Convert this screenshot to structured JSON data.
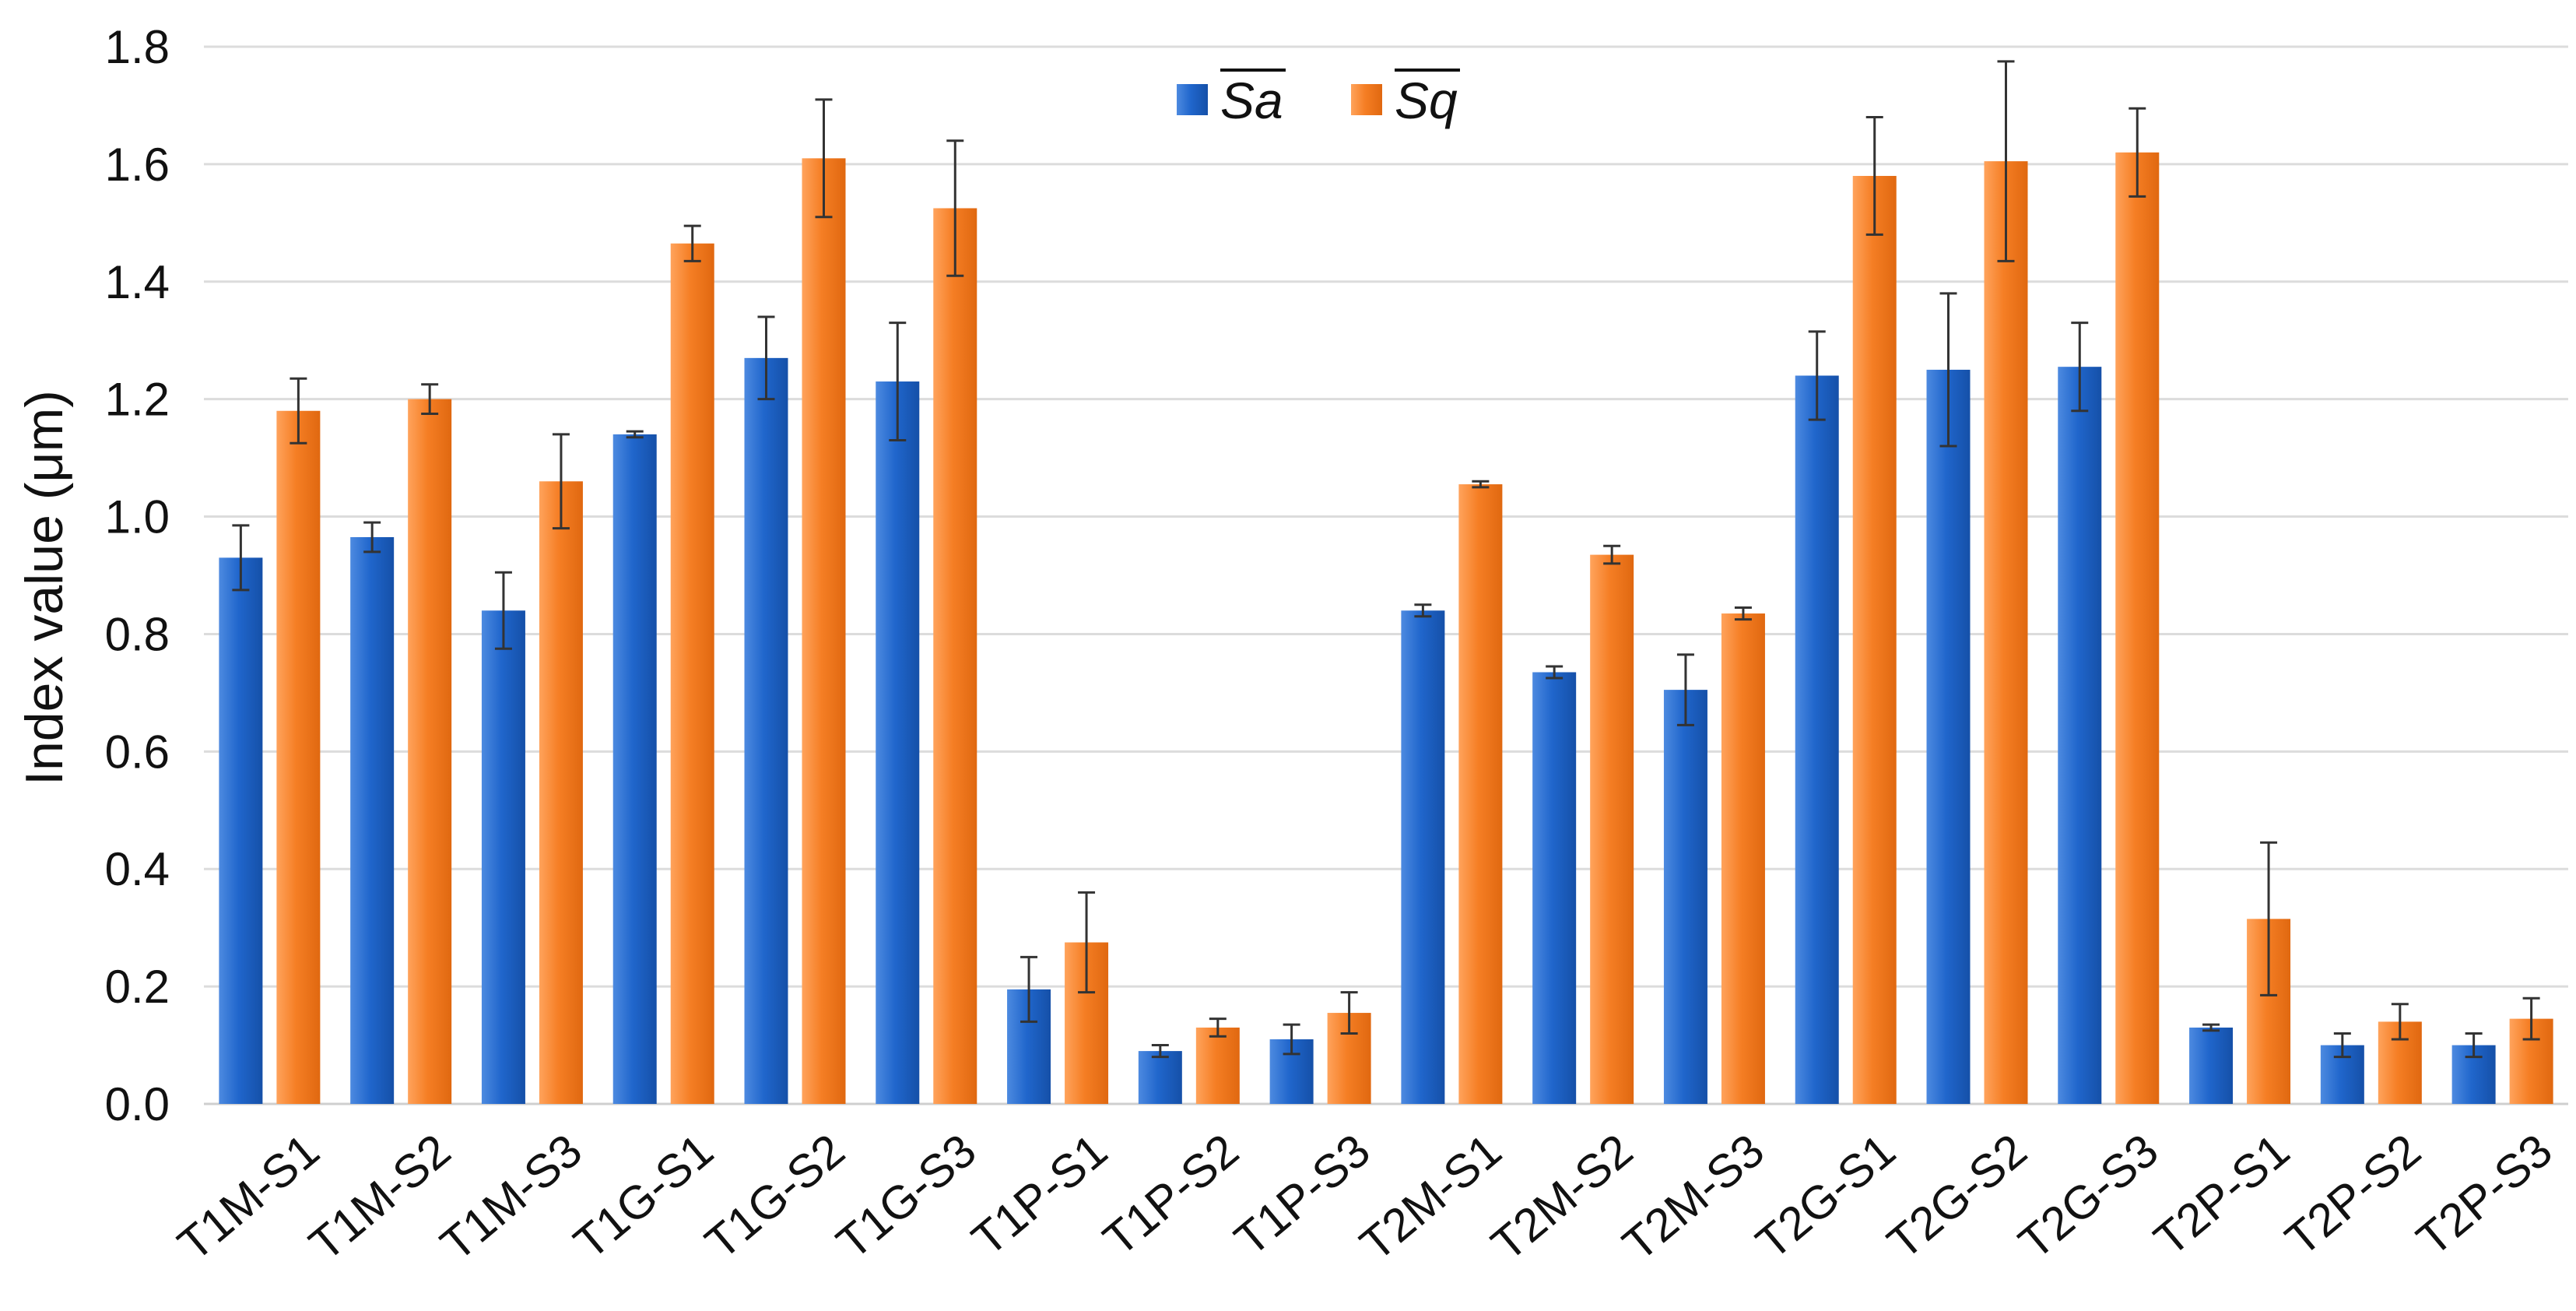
{
  "chart_data": {
    "type": "bar",
    "title": "",
    "xlabel": "",
    "ylabel": "Index value (μm)",
    "ylim": [
      0,
      1.8
    ],
    "yticks": [
      "0.0",
      "0.2",
      "0.4",
      "0.6",
      "0.8",
      "1.0",
      "1.2",
      "1.4",
      "1.6",
      "1.8"
    ],
    "grid": true,
    "legend_position": "top-center",
    "categories": [
      "T1M-S1",
      "T1M-S2",
      "T1M-S3",
      "T1G-S1",
      "T1G-S2",
      "T1G-S3",
      "T1P-S1",
      "T1P-S2",
      "T1P-S3",
      "T2M-S1",
      "T2M-S2",
      "T2M-S3",
      "T2G-S1",
      "T2G-S2",
      "T2G-S3",
      "T2P-S1",
      "T2P-S2",
      "T2P-S3"
    ],
    "series": [
      {
        "name": "Sa",
        "color": "#1f5fc0",
        "values": [
          0.93,
          0.965,
          0.84,
          1.14,
          1.27,
          1.23,
          0.195,
          0.09,
          0.11,
          0.84,
          0.735,
          0.705,
          1.24,
          1.25,
          1.255,
          0.13,
          0.1,
          0.1
        ],
        "errors": [
          0.055,
          0.025,
          0.065,
          0.005,
          0.07,
          0.1,
          0.055,
          0.01,
          0.025,
          0.01,
          0.01,
          0.06,
          0.075,
          0.13,
          0.075,
          0.005,
          0.02,
          0.02
        ]
      },
      {
        "name": "Sq",
        "color": "#f07a20",
        "values": [
          1.18,
          1.2,
          1.06,
          1.465,
          1.61,
          1.525,
          0.275,
          0.13,
          0.155,
          1.055,
          0.935,
          0.835,
          1.58,
          1.605,
          1.62,
          0.315,
          0.14,
          0.145
        ],
        "errors": [
          0.055,
          0.025,
          0.08,
          0.03,
          0.1,
          0.115,
          0.085,
          0.015,
          0.035,
          0.005,
          0.015,
          0.01,
          0.1,
          0.17,
          0.075,
          0.13,
          0.03,
          0.035
        ]
      }
    ]
  }
}
